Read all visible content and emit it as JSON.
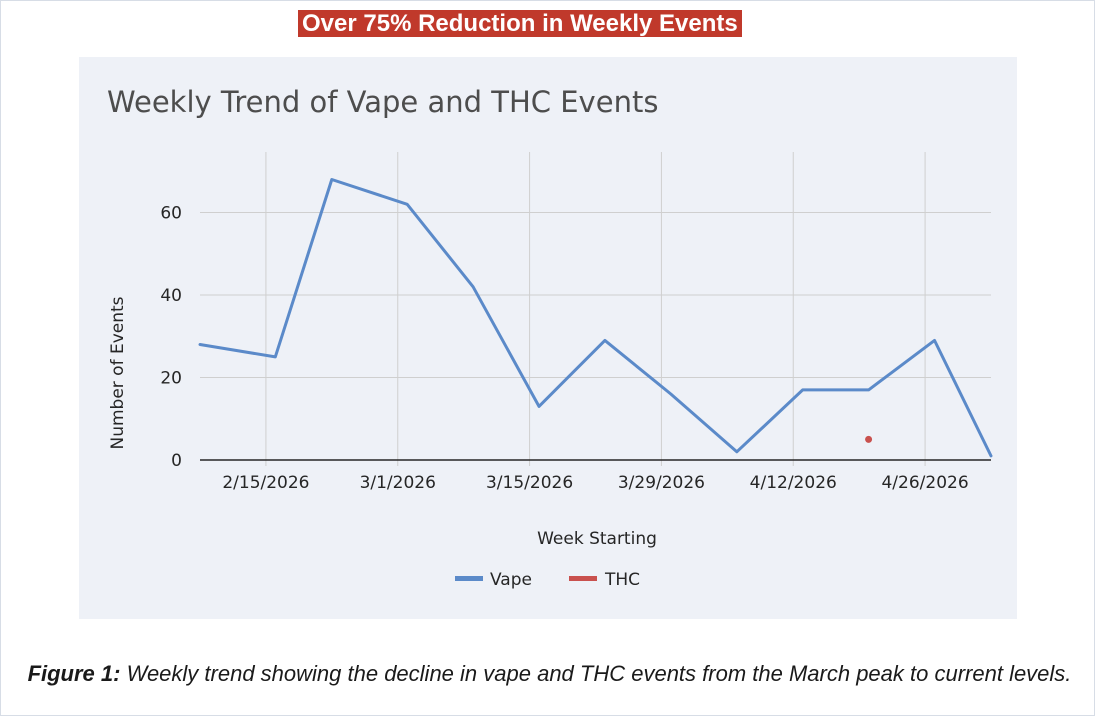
{
  "banner": {
    "text": "Over 75% Reduction in Weekly Events"
  },
  "caption": {
    "label": "Figure 1:",
    "text": " Weekly trend showing the decline in vape and THC events from the March peak to current levels."
  },
  "colors": {
    "vape": "#5b8ac9",
    "thc": "#c9514e",
    "banner": "#c0392b",
    "panel": "#eef1f7",
    "grid": "#cfcfcf"
  },
  "chart_data": {
    "type": "line",
    "title": "Weekly Trend of Vape and THC Events",
    "xlabel": "Week Starting",
    "ylabel": "Number of Events",
    "ylim": [
      0,
      70
    ],
    "yticks": [
      0,
      20,
      40,
      60
    ],
    "xlim": [
      "2026-02-08",
      "2026-05-03"
    ],
    "xticks": [
      {
        "date": "2026-02-15",
        "label": "2/15/2026"
      },
      {
        "date": "2026-03-01",
        "label": "3/1/2026"
      },
      {
        "date": "2026-03-15",
        "label": "3/15/2026"
      },
      {
        "date": "2026-03-29",
        "label": "3/29/2026"
      },
      {
        "date": "2026-04-12",
        "label": "4/12/2026"
      },
      {
        "date": "2026-04-26",
        "label": "4/26/2026"
      }
    ],
    "grid": true,
    "legend_position": "bottom",
    "series": [
      {
        "name": "Vape",
        "color": "#5b8ac9",
        "points": [
          {
            "x": "2026-02-08",
            "y": 28
          },
          {
            "x": "2026-02-16",
            "y": 25
          },
          {
            "x": "2026-02-22",
            "y": 68
          },
          {
            "x": "2026-03-02",
            "y": 62
          },
          {
            "x": "2026-03-09",
            "y": 42
          },
          {
            "x": "2026-03-16",
            "y": 13
          },
          {
            "x": "2026-03-23",
            "y": 29
          },
          {
            "x": "2026-03-30",
            "y": 16
          },
          {
            "x": "2026-04-06",
            "y": 2
          },
          {
            "x": "2026-04-13",
            "y": 17
          },
          {
            "x": "2026-04-20",
            "y": 17
          },
          {
            "x": "2026-04-27",
            "y": 29
          },
          {
            "x": "2026-05-03",
            "y": 1
          }
        ]
      },
      {
        "name": "THC",
        "color": "#c9514e",
        "points": [
          {
            "x": "2026-04-20",
            "y": 5
          }
        ]
      }
    ]
  }
}
